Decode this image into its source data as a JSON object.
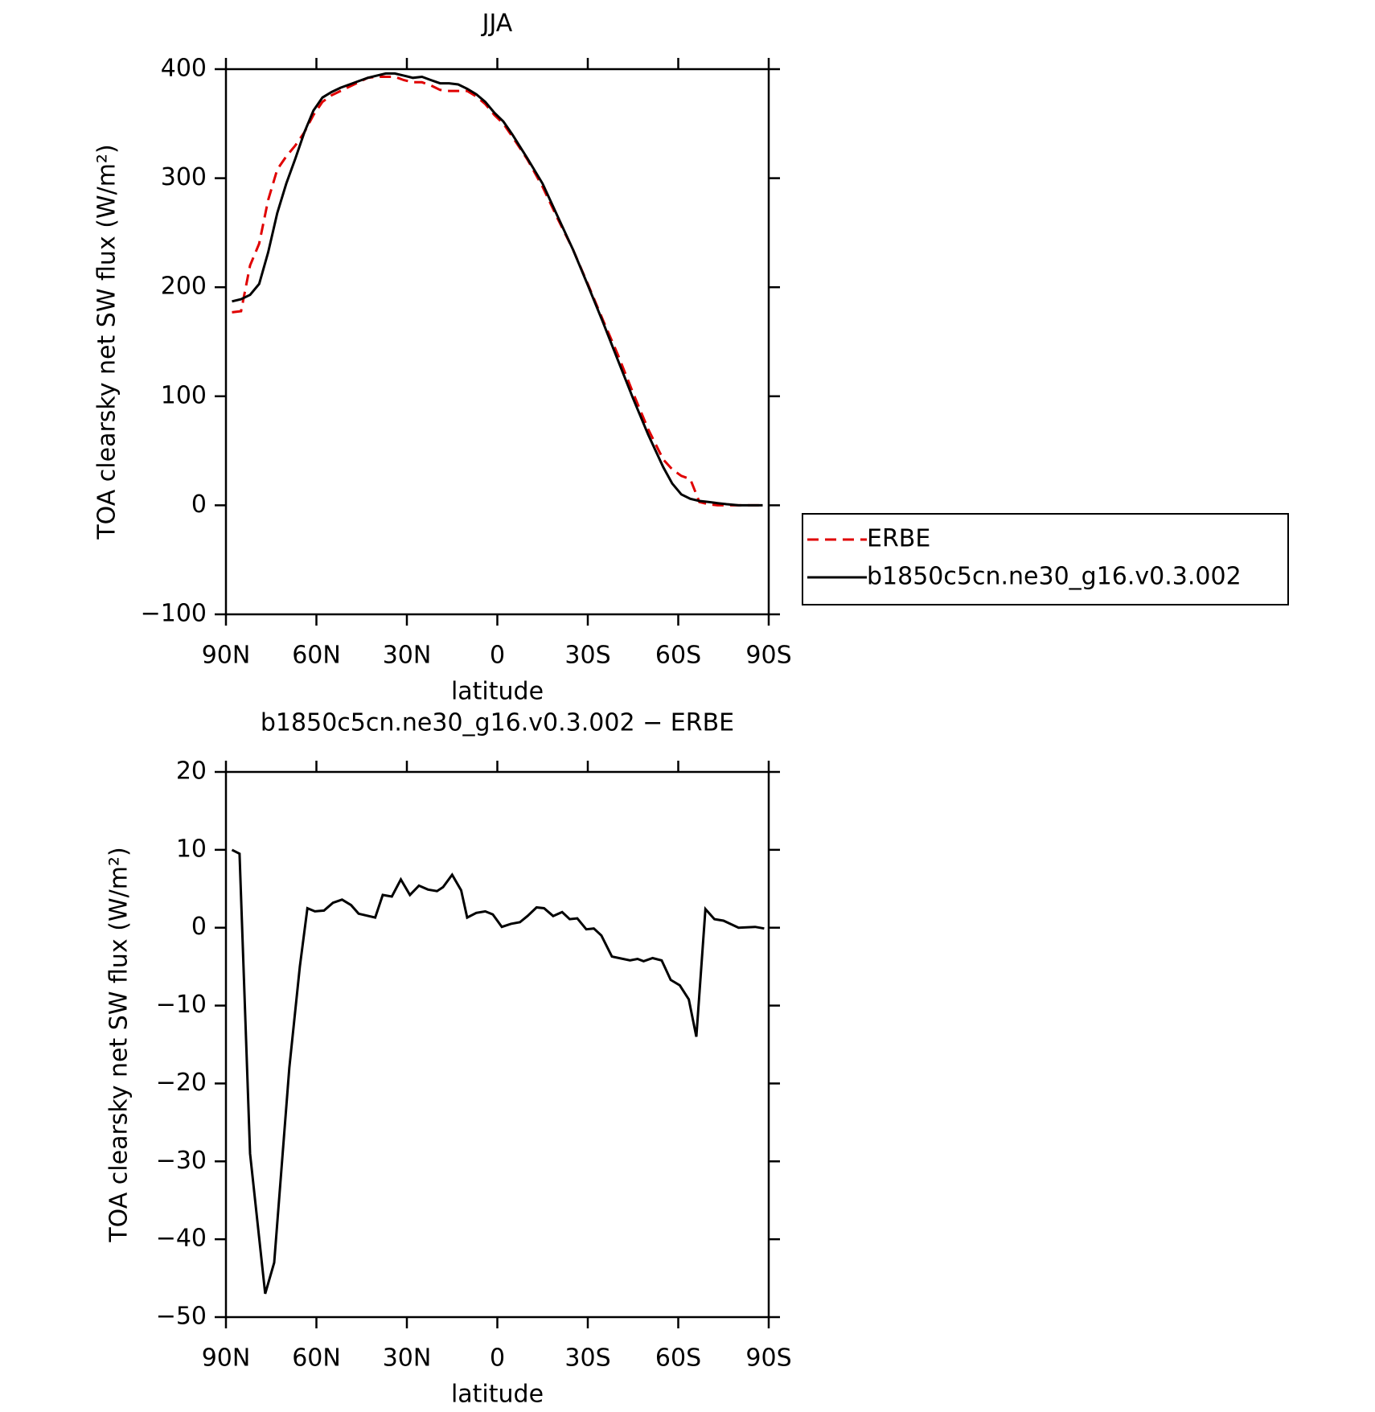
{
  "chart_data": [
    {
      "type": "line",
      "title": "JJA",
      "xlabel": "latitude",
      "ylabel": "TOA clearsky net SW flux (W/m²)",
      "x": [
        88,
        85,
        82,
        79,
        76,
        73,
        70,
        67,
        64,
        61,
        58,
        55,
        52,
        49,
        46,
        43,
        40,
        37,
        34,
        31,
        28,
        25,
        22,
        19,
        16,
        13,
        10,
        7,
        4,
        1,
        -2,
        -5,
        -10,
        -15,
        -20,
        -25,
        -30,
        -35,
        -40,
        -45,
        -50,
        -55,
        -58,
        -61,
        -64,
        -67,
        -70,
        -73,
        -76,
        -80,
        -85,
        -88
      ],
      "series": [
        {
          "name": "ERBE",
          "color": "#e00000",
          "linestyle": "dashed",
          "values": [
            177,
            178,
            220,
            240,
            280,
            308,
            320,
            330,
            342,
            358,
            370,
            376,
            380,
            384,
            388,
            392,
            393,
            393,
            393,
            390,
            388,
            388,
            385,
            381,
            380,
            380,
            380,
            375,
            368,
            358,
            350,
            338,
            317,
            292,
            263,
            235,
            203,
            170,
            138,
            103,
            70,
            42,
            33,
            27,
            24,
            3,
            1,
            0,
            0,
            0,
            0,
            0
          ]
        },
        {
          "name": "b1850c5cn.ne30_g16.v0.3.002",
          "color": "#000000",
          "linestyle": "solid",
          "values": [
            187,
            189,
            193,
            203,
            232,
            268,
            295,
            318,
            342,
            362,
            374,
            379,
            383,
            386,
            389,
            392,
            394,
            396,
            396,
            394,
            392,
            393,
            390,
            387,
            387,
            386,
            382,
            377,
            370,
            360,
            352,
            340,
            318,
            295,
            265,
            235,
            202,
            168,
            133,
            98,
            65,
            35,
            20,
            10,
            6,
            4,
            3,
            2,
            1,
            0,
            0,
            0
          ]
        }
      ],
      "xlim": [
        90,
        -90
      ],
      "xticks": [
        {
          "value": 90,
          "label": "90N"
        },
        {
          "value": 60,
          "label": "60N"
        },
        {
          "value": 30,
          "label": "30N"
        },
        0,
        {
          "value": -30,
          "label": "30S"
        },
        {
          "value": -60,
          "label": "60S"
        },
        {
          "value": -90,
          "label": "90S"
        }
      ],
      "ylim": [
        -100,
        400
      ],
      "yticks": [
        {
          "value": -100,
          "label": "−100"
        },
        0,
        100,
        200,
        300,
        400
      ],
      "legend": "right"
    },
    {
      "type": "line",
      "title": "b1850c5cn.ne30_g16.v0.3.002 − ERBE",
      "xlabel": "latitude",
      "ylabel": "TOA clearsky net SW flux (W/m²)",
      "x": [
        88,
        85.5,
        82,
        79.5,
        77,
        74,
        69,
        65.5,
        63,
        60.5,
        57.5,
        54.5,
        51.5,
        48.5,
        46,
        40.5,
        38,
        35,
        32,
        29,
        26,
        23,
        20,
        18,
        15,
        12,
        10,
        7,
        4,
        1.5,
        -1.5,
        -4.5,
        -7.5,
        -10,
        -13,
        -15.5,
        -18.5,
        -21.5,
        -24,
        -26.5,
        -29.5,
        -32,
        -34.5,
        -38,
        -44,
        -46.5,
        -48.5,
        -51.5,
        -54.5,
        -57.5,
        -60.5,
        -63.5,
        -66,
        -69,
        -72,
        -75,
        -80,
        -85.5,
        -88.5
      ],
      "series": [
        {
          "name": "difference",
          "color": "#000000",
          "linestyle": "solid",
          "values": [
            10,
            9.5,
            -29,
            -38,
            -47,
            -43,
            -18,
            -5,
            2.5,
            2.1,
            2.2,
            3.2,
            3.6,
            2.9,
            1.8,
            1.3,
            4.2,
            4,
            6.2,
            4.2,
            5.4,
            4.9,
            4.7,
            5.2,
            6.8,
            4.8,
            1.3,
            1.9,
            2.1,
            1.7,
            0.1,
            0.5,
            0.7,
            1.5,
            2.6,
            2.5,
            1.5,
            2,
            1.1,
            1.2,
            -0.2,
            -0.1,
            -1,
            -3.7,
            -4.2,
            -4,
            -4.3,
            -3.9,
            -4.2,
            -6.7,
            -7.4,
            -9.2,
            -14,
            2.4,
            1.1,
            0.9,
            0,
            0.1,
            -0.1
          ]
        }
      ],
      "xlim": [
        90,
        -90
      ],
      "xticks": [
        {
          "value": 90,
          "label": "90N"
        },
        {
          "value": 60,
          "label": "60N"
        },
        {
          "value": 30,
          "label": "30N"
        },
        0,
        {
          "value": -30,
          "label": "30S"
        },
        {
          "value": -60,
          "label": "60S"
        },
        {
          "value": -90,
          "label": "90S"
        }
      ],
      "ylim": [
        -50,
        20
      ],
      "yticks": [
        {
          "value": -50,
          "label": "−50"
        },
        {
          "value": -40,
          "label": "−40"
        },
        {
          "value": -30,
          "label": "−30"
        },
        {
          "value": -20,
          "label": "−20"
        },
        {
          "value": -10,
          "label": "−10"
        },
        0,
        10,
        20
      ]
    }
  ]
}
